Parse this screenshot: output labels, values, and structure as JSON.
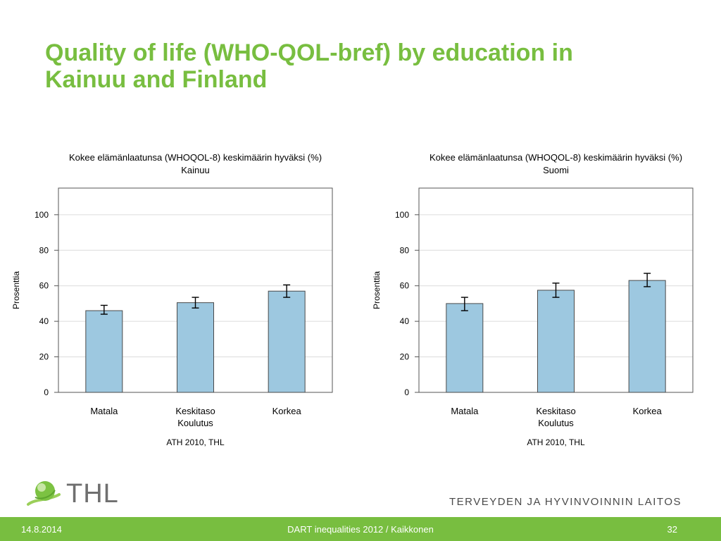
{
  "slide": {
    "title_line1": "Quality of life (WHO-QOL-bref) by education in",
    "title_line2": "Kainuu and Finland",
    "logo_text": "THL",
    "institute": "TERVEYDEN JA HYVINVOINNIN LAITOS",
    "footer_date": "14.8.2014",
    "footer_center": "DART inequalities 2012 / Kaikkonen",
    "footer_page": "32"
  },
  "colors": {
    "accent": "#78be40",
    "bar_fill": "#9dc8e0",
    "bar_stroke": "#4a4a4a"
  },
  "chart_data": [
    {
      "type": "bar",
      "title": "Kokee elämänlaatunsa (WHOQOL-8) keskimäärin hyväksi (%)",
      "subtitle": "Kainuu",
      "xlabel": "Koulutus",
      "ylabel": "Prosenttia",
      "categories": [
        "Matala",
        "Keskitaso",
        "Korkea"
      ],
      "values": [
        46,
        50.5,
        57
      ],
      "error_low": [
        44,
        47.5,
        53.5
      ],
      "error_high": [
        49,
        53.5,
        60.5
      ],
      "yticks": [
        0,
        20,
        40,
        60,
        80,
        100
      ],
      "ylim": [
        0,
        115
      ],
      "grid": true,
      "source": "ATH 2010, THL"
    },
    {
      "type": "bar",
      "title": "Kokee elämänlaatunsa (WHOQOL-8) keskimäärin hyväksi (%)",
      "subtitle": "Suomi",
      "xlabel": "Koulutus",
      "ylabel": "Prosenttia",
      "categories": [
        "Matala",
        "Keskitaso",
        "Korkea"
      ],
      "values": [
        50,
        57.5,
        63
      ],
      "error_low": [
        46,
        53.5,
        59.5
      ],
      "error_high": [
        53.5,
        61.5,
        67
      ],
      "yticks": [
        0,
        20,
        40,
        60,
        80,
        100
      ],
      "ylim": [
        0,
        115
      ],
      "grid": true,
      "source": "ATH 2010, THL"
    }
  ]
}
